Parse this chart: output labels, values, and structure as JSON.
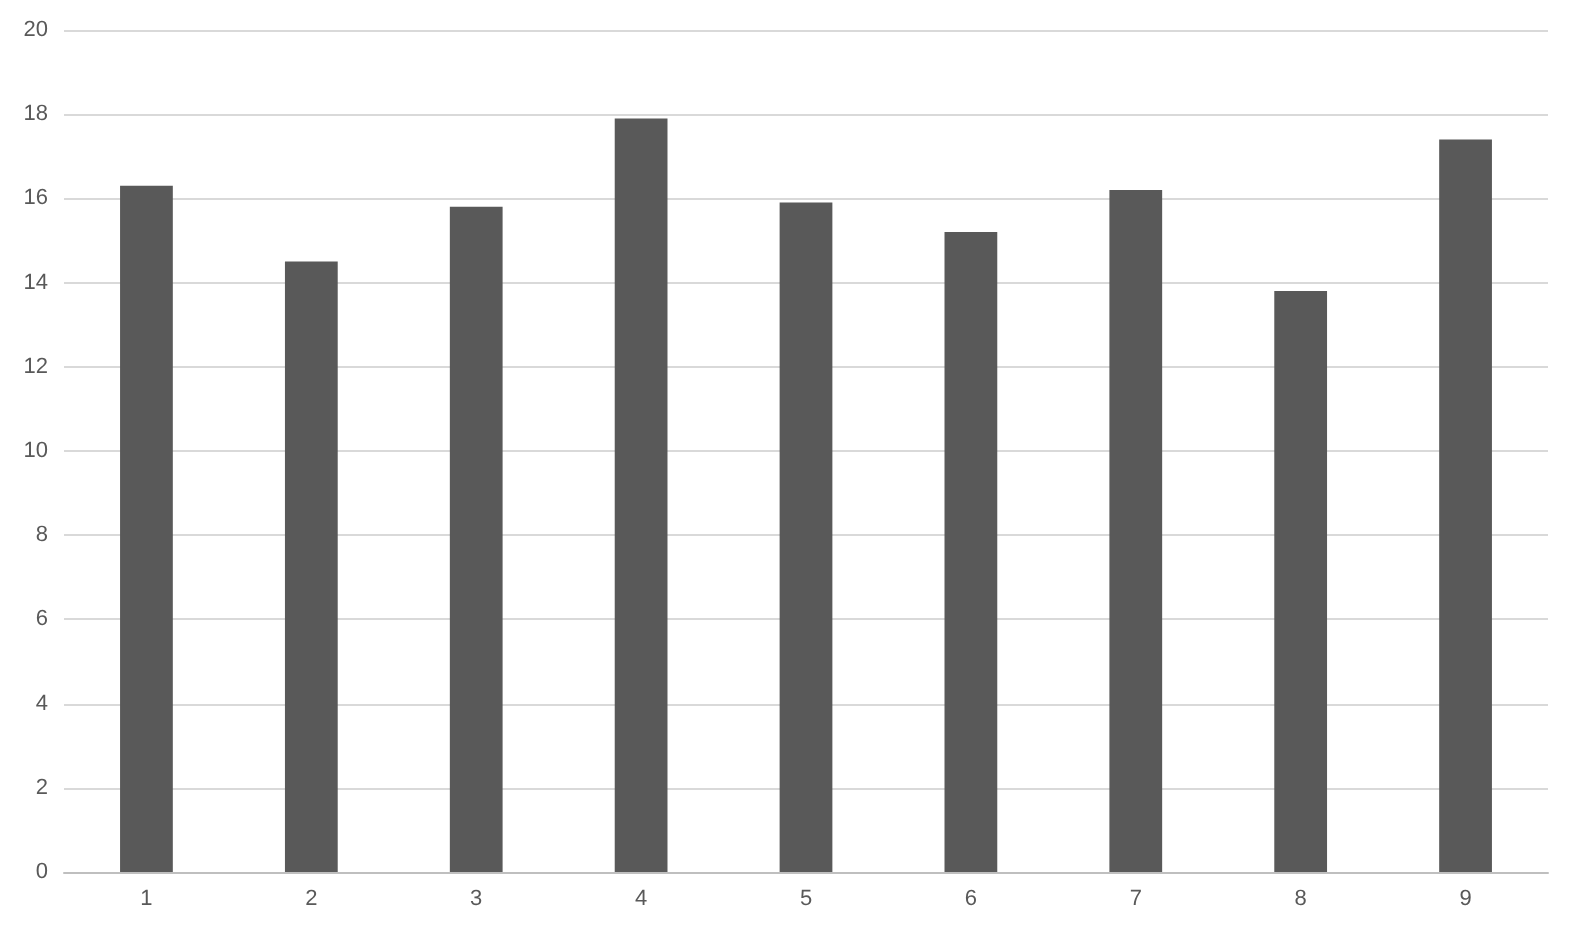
{
  "chart_data": {
    "type": "bar",
    "categories": [
      "1",
      "2",
      "3",
      "4",
      "5",
      "6",
      "7",
      "8",
      "9"
    ],
    "values": [
      16.3,
      14.5,
      15.8,
      17.9,
      15.9,
      15.2,
      16.2,
      13.8,
      17.4
    ],
    "color": "#595959",
    "ylim": [
      0,
      20
    ],
    "yticks": [
      0,
      2,
      4,
      6,
      8,
      10,
      12,
      14,
      16,
      18,
      20
    ],
    "grid": "y"
  }
}
